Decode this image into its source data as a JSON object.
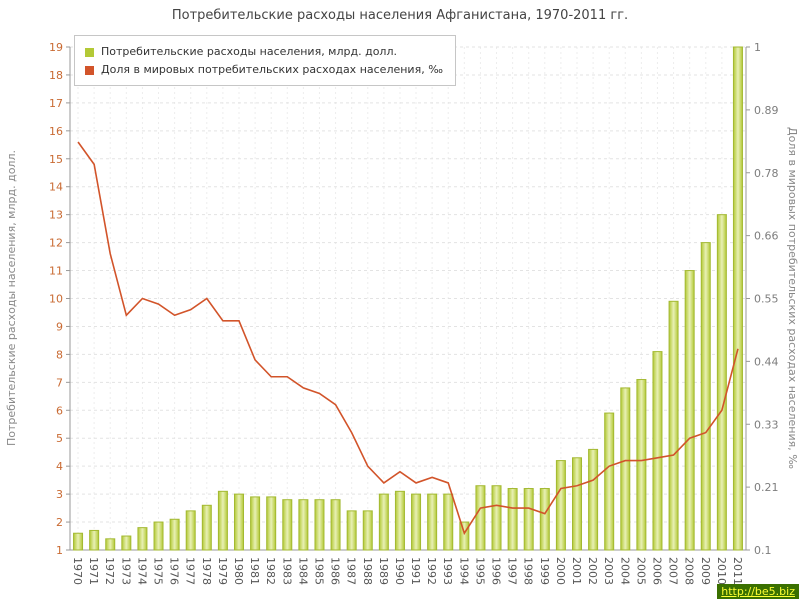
{
  "watermark": {
    "text": "http://be5.biz",
    "bg": "#3a7000",
    "fg": "#ffff33"
  },
  "chart_data": {
    "type": "bar+line",
    "title": "Потребительские расходы населения Афганистана, 1970-2011 гг.",
    "categories": [
      "1970",
      "1971",
      "1972",
      "1973",
      "1974",
      "1975",
      "1976",
      "1977",
      "1978",
      "1979",
      "1980",
      "1981",
      "1982",
      "1983",
      "1984",
      "1985",
      "1986",
      "1987",
      "1988",
      "1989",
      "1990",
      "1991",
      "1992",
      "1993",
      "1994",
      "1995",
      "1996",
      "1997",
      "1998",
      "1999",
      "2000",
      "2001",
      "2002",
      "2003",
      "2004",
      "2005",
      "2006",
      "2007",
      "2008",
      "2009",
      "2010",
      "2011"
    ],
    "series": [
      {
        "name": "Потребительские расходы населения, млрд. долл.",
        "type": "bar",
        "axis": "left",
        "color": "#b3c936",
        "color_light": "#e8f0b4",
        "edge": "#a3b931",
        "values": [
          1.6,
          1.7,
          1.4,
          1.5,
          1.8,
          2.0,
          2.1,
          2.4,
          2.6,
          3.1,
          3.0,
          2.9,
          2.9,
          2.8,
          2.8,
          2.8,
          2.8,
          2.4,
          2.4,
          3.0,
          3.1,
          3.0,
          3.0,
          3.0,
          2.0,
          3.3,
          3.3,
          3.2,
          3.2,
          3.2,
          4.2,
          4.3,
          4.6,
          5.9,
          6.8,
          7.1,
          8.1,
          9.9,
          11.0,
          12.0,
          13.0,
          19.0
        ]
      },
      {
        "name": "Доля в мировых потребительских расходах населения, ‰",
        "type": "line",
        "axis": "right",
        "color": "#d2542a",
        "values": [
          0.83,
          0.79,
          0.63,
          0.52,
          0.55,
          0.54,
          0.52,
          0.53,
          0.55,
          0.51,
          0.51,
          0.44,
          0.41,
          0.41,
          0.39,
          0.38,
          0.36,
          0.31,
          0.25,
          0.22,
          0.24,
          0.22,
          0.23,
          0.22,
          0.13,
          0.175,
          0.18,
          0.175,
          0.175,
          0.165,
          0.21,
          0.215,
          0.225,
          0.25,
          0.26,
          0.26,
          0.265,
          0.27,
          0.3,
          0.31,
          0.35,
          0.46
        ]
      }
    ],
    "left_axis": {
      "label": "Потребительские расходы населения, млрд. долл.",
      "min": 1,
      "max": 19,
      "ticks": [
        1,
        2,
        3,
        4,
        5,
        6,
        7,
        8,
        9,
        10,
        11,
        12,
        13,
        14,
        15,
        16,
        17,
        18,
        19
      ]
    },
    "right_axis": {
      "label": "Доля в мировых потребительских расходах населения, ‰",
      "min": 0.1,
      "max": 1,
      "tick_labels": [
        "1",
        "0.89",
        "0.78",
        "0.66",
        "0.55",
        "0.44",
        "0.33",
        "0.21",
        "0.1"
      ]
    },
    "x_axis": {
      "label": "",
      "grid": true
    },
    "colors": {
      "left_tick": "#c96a32",
      "right_tick": "#7d7d7d",
      "x_tick": "#555555",
      "axis_title": "#888888",
      "grid": "#e3e3e3",
      "axis_line": "#999999"
    }
  }
}
